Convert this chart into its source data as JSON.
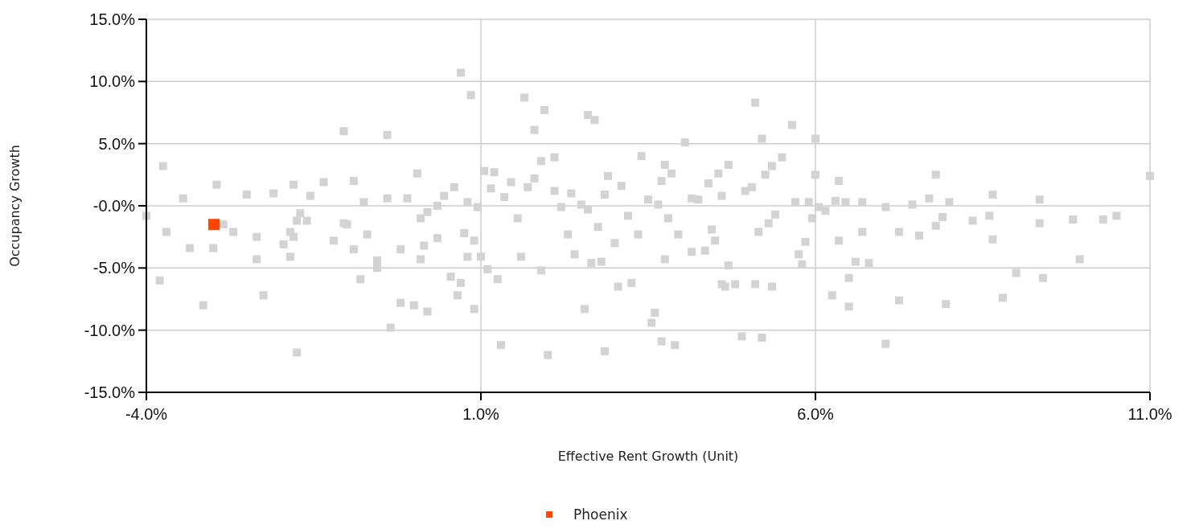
{
  "chart_data": {
    "type": "scatter",
    "xlabel": "Effective Rent Growth (Unit)",
    "ylabel": "Occupancy Growth",
    "xlim": [
      -4,
      11
    ],
    "ylim": [
      -15,
      15
    ],
    "xticks": [
      {
        "value": -4,
        "label": "-4.0%"
      },
      {
        "value": 1,
        "label": "1.0%"
      },
      {
        "value": 6,
        "label": "6.0%"
      },
      {
        "value": 11,
        "label": "11.0%"
      }
    ],
    "yticks": [
      {
        "value": -15,
        "label": "-15.0%"
      },
      {
        "value": -10,
        "label": "-10.0%"
      },
      {
        "value": -5,
        "label": "-5.0%"
      },
      {
        "value": 0,
        "label": "-0.0%"
      },
      {
        "value": 5,
        "label": "5.0%"
      },
      {
        "value": 10,
        "label": "10.0%"
      },
      {
        "value": 15,
        "label": "15.0%"
      }
    ],
    "grid": true,
    "legend": "bottom",
    "marker": "square",
    "series": [
      {
        "color": "#d3d3d3",
        "x": [
          -4.0,
          -3.8,
          -3.75,
          -3.7,
          -3.45,
          -3.35,
          -3.15,
          -3.0,
          -2.95,
          -2.85,
          -2.7,
          -2.5,
          -2.35,
          -2.35,
          -2.25,
          -2.1,
          -1.95,
          -1.85,
          -1.85,
          -1.8,
          -1.8,
          -1.75,
          -1.75,
          -1.7,
          -1.6,
          -1.55,
          -1.35,
          -1.2,
          -1.05,
          -1.05,
          -1.0,
          -0.9,
          -0.9,
          -0.8,
          -0.75,
          -0.7,
          -0.55,
          -0.55,
          -0.4,
          -0.4,
          -0.35,
          -0.2,
          -0.2,
          -0.1,
          0.0,
          0.05,
          0.1,
          0.1,
          0.15,
          0.2,
          0.2,
          0.35,
          0.35,
          0.45,
          0.55,
          0.6,
          0.65,
          0.7,
          0.7,
          0.75,
          0.8,
          0.8,
          0.85,
          0.9,
          0.9,
          0.95,
          1.0,
          1.05,
          1.1,
          1.15,
          1.2,
          1.25,
          1.3,
          1.35,
          1.45,
          1.55,
          1.6,
          1.65,
          1.7,
          1.8,
          1.8,
          1.9,
          1.9,
          1.95,
          2.0,
          2.1,
          2.1,
          2.2,
          2.3,
          2.35,
          2.4,
          2.5,
          2.55,
          2.6,
          2.6,
          2.65,
          2.7,
          2.75,
          2.8,
          2.85,
          2.85,
          2.9,
          3.0,
          3.05,
          3.1,
          3.2,
          3.25,
          3.35,
          3.4,
          3.5,
          3.55,
          3.6,
          3.65,
          3.7,
          3.7,
          3.75,
          3.75,
          3.8,
          3.85,
          3.9,
          3.95,
          4.05,
          4.15,
          4.15,
          4.25,
          4.35,
          4.4,
          4.45,
          4.5,
          4.55,
          4.6,
          4.6,
          4.65,
          4.7,
          4.7,
          4.8,
          4.9,
          4.95,
          5.05,
          5.1,
          5.1,
          5.15,
          5.2,
          5.2,
          5.25,
          5.3,
          5.35,
          5.35,
          5.4,
          5.5,
          5.65,
          5.7,
          5.75,
          5.8,
          5.85,
          5.9,
          5.95,
          6.0,
          6.0,
          6.05,
          6.15,
          6.25,
          6.3,
          6.35,
          6.35,
          6.45,
          6.5,
          6.5,
          6.6,
          6.7,
          6.7,
          6.8,
          7.05,
          7.05,
          7.25,
          7.25,
          7.45,
          7.55,
          7.7,
          7.8,
          7.8,
          7.9,
          7.95,
          8.0,
          8.35,
          8.6,
          8.65,
          8.65,
          8.8,
          9.0,
          9.35,
          9.35,
          9.4,
          9.85,
          9.95,
          10.3,
          10.5,
          11.0
        ],
        "values": [
          -0.8,
          -6.0,
          3.2,
          -2.1,
          0.6,
          -3.4,
          -8.0,
          -3.4,
          1.7,
          -1.5,
          -2.1,
          0.9,
          -4.3,
          -2.5,
          -7.2,
          1.0,
          -3.1,
          -4.1,
          -2.1,
          1.7,
          -2.5,
          -11.8,
          -1.2,
          -0.6,
          -1.2,
          0.8,
          1.9,
          -2.8,
          6.0,
          -1.4,
          -1.5,
          2.0,
          -3.5,
          -5.9,
          0.3,
          -2.3,
          -4.4,
          -5.0,
          0.6,
          5.7,
          -9.8,
          -7.8,
          -3.5,
          0.6,
          -8.0,
          2.6,
          -4.3,
          -1.0,
          -3.2,
          -8.5,
          -0.5,
          -2.6,
          0.0,
          0.8,
          -5.7,
          1.5,
          -7.2,
          10.7,
          -6.2,
          -2.2,
          -4.1,
          0.3,
          8.9,
          -8.3,
          -2.8,
          -0.1,
          -4.1,
          2.8,
          -5.1,
          1.4,
          2.7,
          -5.9,
          -11.2,
          0.7,
          1.9,
          -1.0,
          -4.1,
          8.7,
          1.5,
          2.2,
          6.1,
          3.6,
          -5.2,
          7.7,
          -12.0,
          3.9,
          1.2,
          -0.1,
          -2.3,
          1.0,
          -3.9,
          0.1,
          -8.3,
          7.3,
          -0.3,
          -4.6,
          6.9,
          -1.7,
          -4.5,
          0.9,
          -11.7,
          2.4,
          -3.0,
          -6.5,
          1.6,
          -0.8,
          -6.2,
          -2.3,
          4.0,
          0.5,
          -9.4,
          -8.6,
          0.1,
          2.0,
          -10.9,
          -4.3,
          3.3,
          -1.0,
          2.6,
          -11.2,
          -2.3,
          5.1,
          0.6,
          -3.7,
          0.5,
          -3.6,
          1.8,
          -1.9,
          -2.8,
          2.6,
          0.8,
          -6.3,
          -6.5,
          3.3,
          -4.8,
          -6.3,
          -10.5,
          1.2,
          1.5,
          8.3,
          -6.3,
          -2.1,
          5.4,
          -10.6,
          2.5,
          -1.4,
          3.2,
          -6.5,
          -0.7,
          3.9,
          6.5,
          0.3,
          -3.9,
          -4.7,
          -2.9,
          0.3,
          -1.0,
          2.5,
          5.4,
          -0.1,
          -0.4,
          -7.2,
          0.4,
          -2.8,
          2.0,
          0.3,
          -5.8,
          -8.1,
          -4.5,
          0.3,
          -2.1,
          -4.6,
          -11.1,
          -0.1,
          -7.6,
          -2.1,
          0.1,
          -2.4,
          0.6,
          2.5,
          -1.6,
          -0.9,
          -7.9,
          0.3,
          -1.2,
          -0.8,
          -2.7,
          0.9,
          -7.4,
          -5.4,
          -1.4,
          0.5,
          -5.8,
          -1.1,
          -4.3,
          -1.1,
          -0.8,
          2.4
        ]
      },
      {
        "name": "Phoenix",
        "color": "#ff4500",
        "x": [
          -2.99
        ],
        "values": [
          -1.5
        ]
      }
    ]
  }
}
